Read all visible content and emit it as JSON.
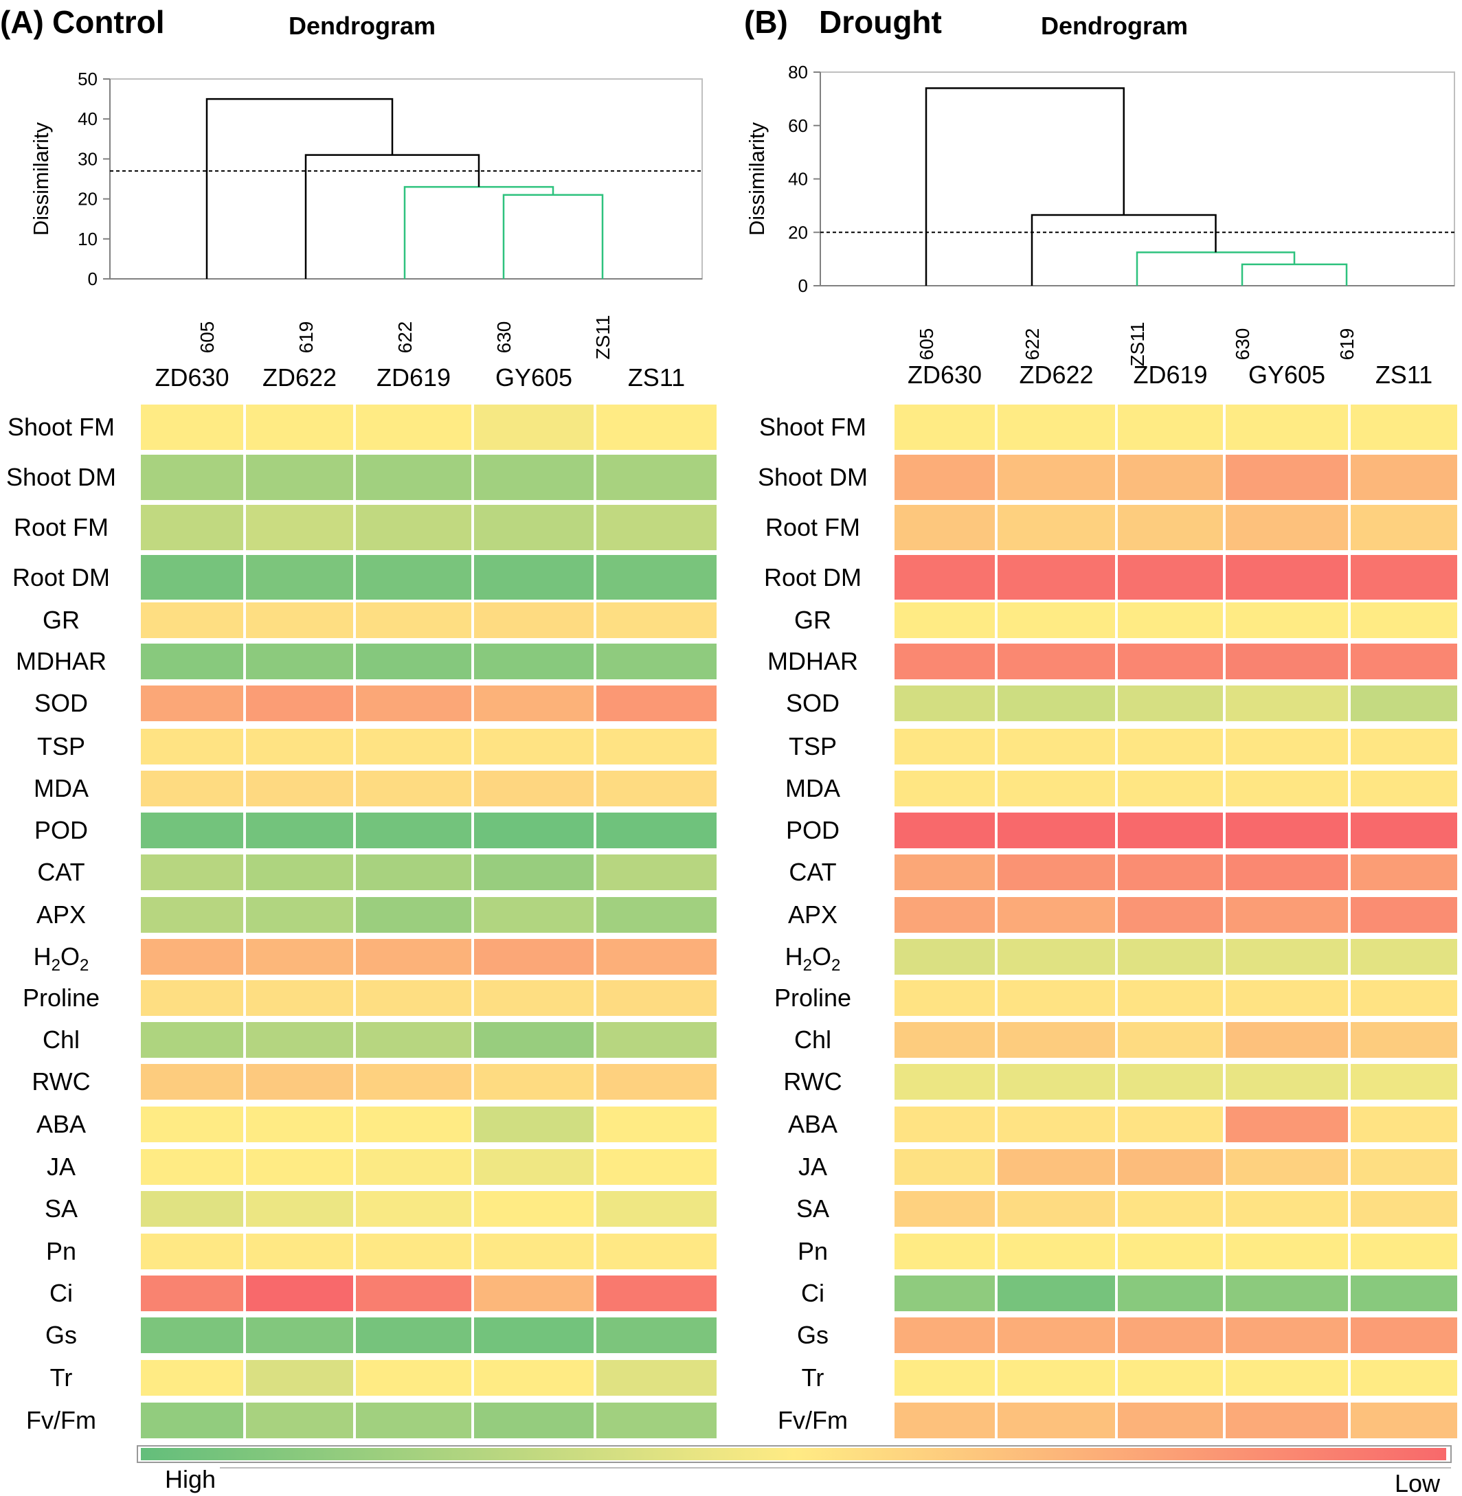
{
  "colors": {
    "high": "#63be7b",
    "mid": "#ffeb84",
    "low": "#f8696b",
    "highlight_branch": "#2ec27e",
    "branch": "#000000",
    "axis": "#808080"
  },
  "legend": {
    "high_label": "High",
    "low_label": "Low"
  },
  "chart_data": [
    {
      "type": "dendrogram",
      "panel_label": "(A)",
      "title": "Control",
      "subtitle": "Dendrogram",
      "ylabel": "Dissimilarity",
      "ylim": [
        0,
        50
      ],
      "yticks": [
        "0",
        "10",
        "20",
        "30",
        "40",
        "50"
      ],
      "leaves": [
        "605",
        "619",
        "622",
        "630",
        "ZS11"
      ],
      "cutoff": 27,
      "merges": [
        {
          "left": 3,
          "right": 4,
          "height": 21,
          "highlight": true
        },
        {
          "left": 2,
          "right": 5,
          "height": 23,
          "highlight": true
        },
        {
          "left": 1,
          "right": 6,
          "height": 31,
          "highlight": false
        },
        {
          "left": 0,
          "right": 7,
          "height": 45,
          "highlight": false
        }
      ]
    },
    {
      "type": "dendrogram",
      "panel_label": "(B)",
      "title": "Drought",
      "subtitle": "Dendrogram",
      "ylabel": "Dissimilarity",
      "ylim": [
        0,
        80
      ],
      "yticks": [
        "0",
        "20",
        "40",
        "60",
        "80"
      ],
      "leaves": [
        "605",
        "622",
        "ZS11",
        "630",
        "619"
      ],
      "cutoff": 20,
      "merges": [
        {
          "left": 3,
          "right": 4,
          "height": 8,
          "highlight": true
        },
        {
          "left": 2,
          "right": 5,
          "height": 12.5,
          "highlight": true
        },
        {
          "left": 1,
          "right": 6,
          "height": 26.5,
          "highlight": false
        },
        {
          "left": 0,
          "right": 7,
          "height": 74,
          "highlight": false
        }
      ]
    },
    {
      "type": "heatmap",
      "panel": "Control",
      "scale": "relative level, 0 = High (green), 0.5 = middle (yellow), 1 = Low (red)",
      "columns": [
        "ZD630",
        "ZD622",
        "ZD619",
        "GY605",
        "ZS11"
      ],
      "rows": [
        "Shoot FM",
        "Shoot DM",
        "Root FM",
        "Root DM",
        "GR",
        "MDHAR",
        "SOD",
        "TSP",
        "MDA",
        "POD",
        "CAT",
        "APX",
        "H2O2",
        "Proline",
        "Chl",
        "RWC",
        "ABA",
        "JA",
        "SA",
        "Pn",
        "Ci",
        "Gs",
        "Tr",
        "Fv/Fm"
      ],
      "values": [
        [
          0.5,
          0.5,
          0.5,
          0.47,
          0.5
        ],
        [
          0.22,
          0.21,
          0.2,
          0.2,
          0.22
        ],
        [
          0.3,
          0.33,
          0.3,
          0.28,
          0.3
        ],
        [
          0.06,
          0.08,
          0.07,
          0.06,
          0.07
        ],
        [
          0.55,
          0.55,
          0.55,
          0.56,
          0.55
        ],
        [
          0.12,
          0.13,
          0.11,
          0.12,
          0.14
        ],
        [
          0.76,
          0.8,
          0.76,
          0.72,
          0.82
        ],
        [
          0.53,
          0.53,
          0.53,
          0.53,
          0.53
        ],
        [
          0.56,
          0.57,
          0.56,
          0.58,
          0.56
        ],
        [
          0.05,
          0.05,
          0.05,
          0.04,
          0.04
        ],
        [
          0.27,
          0.24,
          0.22,
          0.17,
          0.27
        ],
        [
          0.27,
          0.25,
          0.18,
          0.25,
          0.2
        ],
        [
          0.72,
          0.7,
          0.72,
          0.76,
          0.73
        ],
        [
          0.55,
          0.55,
          0.55,
          0.55,
          0.56
        ],
        [
          0.24,
          0.26,
          0.27,
          0.17,
          0.27
        ],
        [
          0.62,
          0.63,
          0.6,
          0.56,
          0.6
        ],
        [
          0.5,
          0.5,
          0.5,
          0.35,
          0.5
        ],
        [
          0.5,
          0.5,
          0.49,
          0.45,
          0.5
        ],
        [
          0.4,
          0.44,
          0.48,
          0.5,
          0.45
        ],
        [
          0.51,
          0.51,
          0.51,
          0.51,
          0.51
        ],
        [
          0.9,
          1.0,
          0.92,
          0.7,
          0.94
        ],
        [
          0.08,
          0.1,
          0.06,
          0.05,
          0.08
        ],
        [
          0.5,
          0.38,
          0.5,
          0.5,
          0.4
        ],
        [
          0.15,
          0.22,
          0.2,
          0.16,
          0.2
        ]
      ]
    },
    {
      "type": "heatmap",
      "panel": "Drought",
      "scale": "relative level, 0 = High (green), 0.5 = middle (yellow), 1 = Low (red)",
      "columns": [
        "ZD630",
        "ZD622",
        "ZD619",
        "GY605",
        "ZS11"
      ],
      "rows": [
        "Shoot FM",
        "Shoot DM",
        "Root FM",
        "Root DM",
        "GR",
        "MDHAR",
        "SOD",
        "TSP",
        "MDA",
        "POD",
        "CAT",
        "APX",
        "H2O2",
        "Proline",
        "Chl",
        "RWC",
        "ABA",
        "JA",
        "SA",
        "Pn",
        "Ci",
        "Gs",
        "Tr",
        "Fv/Fm"
      ],
      "values": [
        [
          0.5,
          0.5,
          0.5,
          0.5,
          0.5
        ],
        [
          0.74,
          0.67,
          0.68,
          0.79,
          0.7
        ],
        [
          0.64,
          0.6,
          0.62,
          0.66,
          0.6
        ],
        [
          0.96,
          0.96,
          0.97,
          0.98,
          0.96
        ],
        [
          0.5,
          0.5,
          0.5,
          0.5,
          0.5
        ],
        [
          0.88,
          0.88,
          0.89,
          0.9,
          0.89
        ],
        [
          0.36,
          0.34,
          0.37,
          0.4,
          0.31
        ],
        [
          0.52,
          0.52,
          0.52,
          0.52,
          0.52
        ],
        [
          0.52,
          0.52,
          0.52,
          0.52,
          0.52
        ],
        [
          1.0,
          1.0,
          1.0,
          1.0,
          1.0
        ],
        [
          0.76,
          0.84,
          0.86,
          0.88,
          0.8
        ],
        [
          0.77,
          0.75,
          0.83,
          0.8,
          0.86
        ],
        [
          0.38,
          0.4,
          0.4,
          0.41,
          0.41
        ],
        [
          0.53,
          0.53,
          0.53,
          0.53,
          0.53
        ],
        [
          0.62,
          0.62,
          0.56,
          0.66,
          0.62
        ],
        [
          0.44,
          0.43,
          0.43,
          0.43,
          0.45
        ],
        [
          0.53,
          0.53,
          0.53,
          0.82,
          0.53
        ],
        [
          0.54,
          0.66,
          0.68,
          0.6,
          0.55
        ],
        [
          0.6,
          0.56,
          0.53,
          0.53,
          0.55
        ],
        [
          0.5,
          0.5,
          0.5,
          0.5,
          0.5
        ],
        [
          0.14,
          0.06,
          0.12,
          0.13,
          0.12
        ],
        [
          0.74,
          0.74,
          0.76,
          0.76,
          0.8
        ],
        [
          0.5,
          0.5,
          0.5,
          0.5,
          0.5
        ],
        [
          0.66,
          0.66,
          0.72,
          0.75,
          0.66
        ]
      ]
    }
  ]
}
